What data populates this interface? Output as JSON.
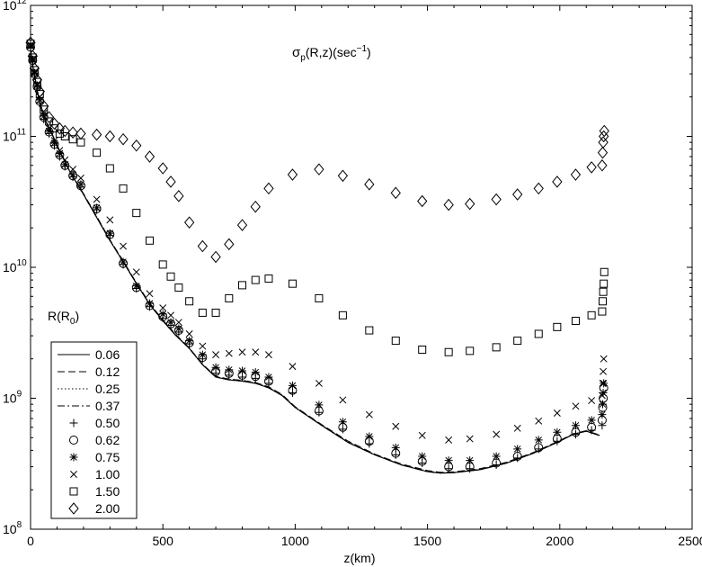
{
  "chart_data": {
    "type": "scatter",
    "annotation_main": "σ",
    "annotation_sub": "p",
    "annotation_rest": "(R,z)(sec",
    "annotation_exp": "−1",
    "annotation_end": ")",
    "xlabel": "z(km)",
    "ylabel": "",
    "xlim": [
      0,
      2500
    ],
    "ylim": [
      100000000,
      1000000000000
    ],
    "yscale": "log",
    "x_ticks": [
      0,
      500,
      1000,
      1500,
      2000,
      2500
    ],
    "x_tick_labels": [
      "0",
      "500",
      "1000",
      "1500",
      "2000",
      "2500"
    ],
    "y_ticks": [
      100000000,
      1000000000,
      10000000000,
      100000000000,
      1000000000000
    ],
    "y_tick_base": "10",
    "y_tick_exponents": [
      "8",
      "9",
      "10",
      "11",
      "12"
    ],
    "grid": false,
    "legend_title_main": "R(R",
    "legend_title_sub": "0",
    "legend_title_end": ")",
    "legend_position": "bottom-left",
    "series": [
      {
        "name": "0.06",
        "marker": "solid-line",
        "x": [
          0,
          10,
          20,
          30,
          50,
          80,
          100,
          120,
          150,
          200,
          250,
          300,
          350,
          400,
          450,
          500,
          550,
          600,
          650,
          700,
          750,
          800,
          850,
          900,
          950,
          1000,
          1100,
          1200,
          1300,
          1400,
          1500,
          1550,
          1600,
          1700,
          1800,
          1900,
          2000,
          2050,
          2100,
          2150
        ],
        "y": [
          450000000000.0,
          330000000000.0,
          260000000000.0,
          200000000000.0,
          140000000000.0,
          105000000000.0,
          85000000000.0,
          70000000000.0,
          53000000000.0,
          36000000000.0,
          24000000000.0,
          16000000000.0,
          11000000000.0,
          7500000000.0,
          5200000000.0,
          3900000000.0,
          3000000000.0,
          2400000000.0,
          1800000000.0,
          1450000000.0,
          1380000000.0,
          1350000000.0,
          1300000000.0,
          1200000000.0,
          1050000000.0,
          850000000.0,
          620000000.0,
          460000000.0,
          370000000.0,
          310000000.0,
          275000000.0,
          268000000.0,
          270000000.0,
          285000000.0,
          320000000.0,
          380000000.0,
          470000000.0,
          530000000.0,
          560000000.0,
          520000000.0
        ]
      },
      {
        "name": "0.12",
        "marker": "dashed-line",
        "x": [
          0,
          10,
          20,
          30,
          50,
          80,
          100,
          120,
          150,
          200,
          250,
          300,
          350,
          400,
          450,
          500,
          550,
          600,
          650,
          700,
          750,
          800,
          850,
          900,
          950,
          1000,
          1100,
          1200,
          1300,
          1400,
          1500,
          1550,
          1600,
          1700,
          1800,
          1900,
          2000,
          2050,
          2100,
          2150
        ],
        "y": [
          460000000000.0,
          335000000000.0,
          262000000000.0,
          202000000000.0,
          142000000000.0,
          106000000000.0,
          86000000000.0,
          71000000000.0,
          53500000000.0,
          36500000000.0,
          24500000000.0,
          16200000000.0,
          11200000000.0,
          7600000000.0,
          5300000000.0,
          3950000000.0,
          3050000000.0,
          2420000000.0,
          1820000000.0,
          1470000000.0,
          1400000000.0,
          1370000000.0,
          1320000000.0,
          1220000000.0,
          1070000000.0,
          860000000.0,
          630000000.0,
          470000000.0,
          375000000.0,
          315000000.0,
          280000000.0,
          272000000.0,
          274000000.0,
          290000000.0,
          325000000.0,
          385000000.0,
          475000000.0,
          535000000.0,
          565000000.0,
          525000000.0
        ]
      },
      {
        "name": "0.25",
        "marker": "dotted-line",
        "x": [
          0,
          10,
          20,
          30,
          50,
          80,
          100,
          120,
          150,
          200,
          250,
          300,
          350,
          400,
          450,
          500,
          550,
          600,
          650,
          700,
          750,
          800,
          850,
          900,
          950,
          1000,
          1100,
          1200,
          1300,
          1400,
          1500,
          1550,
          1600,
          1700,
          1800,
          1900,
          2000,
          2050,
          2100,
          2150
        ],
        "y": [
          455000000000.0,
          332000000000.0,
          261000000000.0,
          201000000000.0,
          141000000000.0,
          105500000000.0,
          85500000000.0,
          70500000000.0,
          53200000000.0,
          36200000000.0,
          24200000000.0,
          16100000000.0,
          11100000000.0,
          7550000000.0,
          5250000000.0,
          3920000000.0,
          3020000000.0,
          2410000000.0,
          1810000000.0,
          1460000000.0,
          1390000000.0,
          1360000000.0,
          1310000000.0,
          1210000000.0,
          1060000000.0,
          855000000.0,
          625000000.0,
          465000000.0,
          372000000.0,
          312000000.0,
          277000000.0,
          270000000.0,
          272000000.0,
          287000000.0,
          322000000.0,
          382000000.0,
          472000000.0,
          532000000.0,
          562000000.0,
          522000000.0
        ]
      },
      {
        "name": "0.37",
        "marker": "dashdot-line",
        "x": [
          0,
          10,
          20,
          30,
          50,
          80,
          100,
          120,
          150,
          200,
          250,
          300,
          350,
          400,
          450,
          500,
          550,
          600,
          650,
          700,
          750,
          800,
          850,
          900,
          950,
          1000,
          1100,
          1200,
          1300,
          1400,
          1500,
          1550,
          1600,
          1700,
          1800,
          1900,
          2000,
          2050,
          2100,
          2150
        ],
        "y": [
          450000000000.0,
          330000000000.0,
          260000000000.0,
          200000000000.0,
          140000000000.0,
          105000000000.0,
          85000000000.0,
          70000000000.0,
          53000000000.0,
          36000000000.0,
          24000000000.0,
          16000000000.0,
          11000000000.0,
          7500000000.0,
          5200000000.0,
          3900000000.0,
          3000000000.0,
          2400000000.0,
          1800000000.0,
          1450000000.0,
          1380000000.0,
          1350000000.0,
          1300000000.0,
          1200000000.0,
          1050000000.0,
          850000000.0,
          620000000.0,
          460000000.0,
          370000000.0,
          310000000.0,
          275000000.0,
          268000000.0,
          270000000.0,
          285000000.0,
          320000000.0,
          380000000.0,
          470000000.0,
          530000000.0,
          560000000.0,
          520000000.0
        ]
      },
      {
        "name": "0.50",
        "marker": "plus",
        "x": [
          0,
          8,
          15,
          25,
          35,
          50,
          70,
          90,
          110,
          130,
          160,
          190,
          250,
          300,
          350,
          400,
          450,
          500,
          530,
          560,
          600,
          650,
          700,
          750,
          800,
          850,
          900,
          990,
          1090,
          1180,
          1280,
          1380,
          1480,
          1580,
          1660,
          1760,
          1840,
          1920,
          1990,
          2060,
          2120,
          2160
        ],
        "y": [
          470000000000.0,
          370000000000.0,
          290000000000.0,
          230000000000.0,
          180000000000.0,
          135000000000.0,
          105000000000.0,
          85000000000.0,
          70000000000.0,
          59000000000.0,
          49000000000.0,
          41000000000.0,
          27500000000.0,
          17500000000.0,
          10500000000.0,
          6900000000.0,
          5000000000.0,
          4100000000.0,
          3600000000.0,
          3200000000.0,
          2600000000.0,
          2000000000.0,
          1550000000.0,
          1500000000.0,
          1450000000.0,
          1420000000.0,
          1300000000.0,
          1100000000.0,
          780000000.0,
          580000000.0,
          450000000.0,
          370000000.0,
          320000000.0,
          290000000.0,
          290000000.0,
          310000000.0,
          350000000.0,
          410000000.0,
          470000000.0,
          530000000.0,
          570000000.0,
          620000000.0
        ]
      },
      {
        "name": "0.62",
        "marker": "circle",
        "x": [
          0,
          8,
          15,
          25,
          35,
          50,
          70,
          90,
          110,
          130,
          160,
          190,
          250,
          300,
          350,
          400,
          450,
          500,
          530,
          560,
          600,
          650,
          700,
          750,
          800,
          850,
          900,
          990,
          1090,
          1180,
          1280,
          1380,
          1480,
          1580,
          1660,
          1760,
          1840,
          1920,
          1990,
          2060,
          2120,
          2160,
          2162,
          2164,
          2166
        ],
        "y": [
          480000000000.0,
          380000000000.0,
          300000000000.0,
          240000000000.0,
          185000000000.0,
          140000000000.0,
          108000000000.0,
          87000000000.0,
          72000000000.0,
          60000000000.0,
          50000000000.0,
          42000000000.0,
          28000000000.0,
          17800000000.0,
          10700000000.0,
          7000000000.0,
          5100000000.0,
          4200000000.0,
          3700000000.0,
          3300000000.0,
          2650000000.0,
          2050000000.0,
          1600000000.0,
          1550000000.0,
          1500000000.0,
          1470000000.0,
          1350000000.0,
          1150000000.0,
          800000000.0,
          600000000.0,
          470000000.0,
          380000000.0,
          330000000.0,
          300000000.0,
          300000000.0,
          320000000.0,
          360000000.0,
          420000000.0,
          490000000.0,
          550000000.0,
          600000000.0,
          680000000.0,
          850000000.0,
          1000000000.0,
          1200000000.0
        ]
      },
      {
        "name": "0.75",
        "marker": "asterisk",
        "x": [
          0,
          8,
          15,
          25,
          35,
          50,
          70,
          90,
          110,
          130,
          160,
          190,
          250,
          300,
          350,
          400,
          450,
          500,
          530,
          560,
          600,
          650,
          700,
          750,
          800,
          850,
          900,
          990,
          1090,
          1180,
          1280,
          1380,
          1480,
          1580,
          1660,
          1760,
          1840,
          1920,
          1990,
          2060,
          2120,
          2160,
          2162,
          2164,
          2166
        ],
        "y": [
          490000000000.0,
          385000000000.0,
          305000000000.0,
          245000000000.0,
          190000000000.0,
          143000000000.0,
          110000000000.0,
          89000000000.0,
          74000000000.0,
          61000000000.0,
          51000000000.0,
          43000000000.0,
          28500000000.0,
          18200000000.0,
          11000000000.0,
          7200000000.0,
          5300000000.0,
          4400000000.0,
          3800000000.0,
          3400000000.0,
          2750000000.0,
          2150000000.0,
          1720000000.0,
          1650000000.0,
          1620000000.0,
          1580000000.0,
          1450000000.0,
          1250000000.0,
          890000000.0,
          660000000.0,
          510000000.0,
          420000000.0,
          360000000.0,
          335000000.0,
          335000000.0,
          360000000.0,
          410000000.0,
          480000000.0,
          550000000.0,
          620000000.0,
          680000000.0,
          750000000.0,
          900000000.0,
          1100000000.0,
          1300000000.0
        ]
      },
      {
        "name": "1.00",
        "marker": "cross",
        "x": [
          0,
          8,
          15,
          25,
          35,
          50,
          70,
          90,
          110,
          130,
          160,
          190,
          250,
          300,
          350,
          400,
          450,
          500,
          530,
          560,
          600,
          650,
          700,
          750,
          800,
          850,
          900,
          990,
          1090,
          1180,
          1280,
          1380,
          1480,
          1580,
          1660,
          1760,
          1840,
          1920,
          1990,
          2060,
          2120,
          2160,
          2162,
          2164,
          2166
        ],
        "y": [
          500000000000.0,
          390000000000.0,
          310000000000.0,
          250000000000.0,
          200000000000.0,
          150000000000.0,
          115000000000.0,
          93000000000.0,
          78000000000.0,
          66000000000.0,
          56000000000.0,
          48000000000.0,
          33000000000.0,
          23000000000.0,
          14500000000.0,
          9200000000.0,
          6300000000.0,
          4900000000.0,
          4300000000.0,
          3800000000.0,
          3100000000.0,
          2500000000.0,
          2150000000.0,
          2200000000.0,
          2250000000.0,
          2250000000.0,
          2150000000.0,
          1750000000.0,
          1300000000.0,
          970000000.0,
          750000000.0,
          610000000.0,
          520000000.0,
          480000000.0,
          490000000.0,
          530000000.0,
          590000000.0,
          670000000.0,
          770000000.0,
          870000000.0,
          960000000.0,
          1050000000.0,
          1300000000.0,
          1600000000.0,
          2000000000.0
        ]
      },
      {
        "name": "1.50",
        "marker": "square",
        "x": [
          0,
          8,
          15,
          25,
          35,
          50,
          70,
          90,
          110,
          130,
          160,
          190,
          250,
          300,
          350,
          400,
          450,
          500,
          530,
          560,
          600,
          650,
          700,
          750,
          800,
          850,
          900,
          990,
          1090,
          1180,
          1280,
          1380,
          1480,
          1580,
          1660,
          1760,
          1840,
          1920,
          1990,
          2060,
          2120,
          2160,
          2162,
          2164,
          2166,
          2168
        ],
        "y": [
          510000000000.0,
          400000000000.0,
          320000000000.0,
          260000000000.0,
          210000000000.0,
          160000000000.0,
          130000000000.0,
          115000000000.0,
          105000000000.0,
          100000000000.0,
          95000000000.0,
          90000000000.0,
          75000000000.0,
          57000000000.0,
          40000000000.0,
          26000000000.0,
          16000000000.0,
          10500000000.0,
          8500000000.0,
          7000000000.0,
          5500000000.0,
          4500000000.0,
          4500000000.0,
          5800000000.0,
          7300000000.0,
          8000000000.0,
          8200000000.0,
          7500000000.0,
          5800000000.0,
          4300000000.0,
          3300000000.0,
          2750000000.0,
          2350000000.0,
          2250000000.0,
          2300000000.0,
          2450000000.0,
          2750000000.0,
          3100000000.0,
          3500000000.0,
          3900000000.0,
          4300000000.0,
          4600000000.0,
          5500000000.0,
          6500000000.0,
          7500000000.0,
          9200000000.0
        ]
      },
      {
        "name": "2.00",
        "marker": "diamond",
        "x": [
          0,
          8,
          15,
          25,
          35,
          50,
          70,
          90,
          110,
          130,
          160,
          190,
          250,
          300,
          350,
          400,
          450,
          500,
          530,
          560,
          600,
          650,
          700,
          750,
          800,
          850,
          900,
          990,
          1090,
          1180,
          1280,
          1380,
          1480,
          1580,
          1660,
          1760,
          1840,
          1920,
          1990,
          2060,
          2120,
          2160,
          2162,
          2164,
          2166,
          2168
        ],
        "y": [
          520000000000.0,
          410000000000.0,
          330000000000.0,
          270000000000.0,
          220000000000.0,
          170000000000.0,
          140000000000.0,
          125000000000.0,
          115000000000.0,
          110000000000.0,
          107000000000.0,
          105000000000.0,
          103000000000.0,
          100000000000.0,
          95000000000.0,
          85000000000.0,
          70000000000.0,
          57000000000.0,
          45000000000.0,
          35000000000.0,
          22000000000.0,
          14500000000.0,
          12000000000.0,
          15000000000.0,
          21000000000.0,
          29000000000.0,
          40000000000.0,
          51000000000.0,
          56000000000.0,
          50000000000.0,
          43000000000.0,
          37000000000.0,
          32000000000.0,
          30000000000.0,
          30500000000.0,
          33000000000.0,
          36000000000.0,
          40000000000.0,
          45000000000.0,
          51000000000.0,
          58000000000.0,
          60000000000.0,
          75000000000.0,
          90000000000.0,
          100000000000.0,
          110000000000.0
        ]
      }
    ]
  }
}
